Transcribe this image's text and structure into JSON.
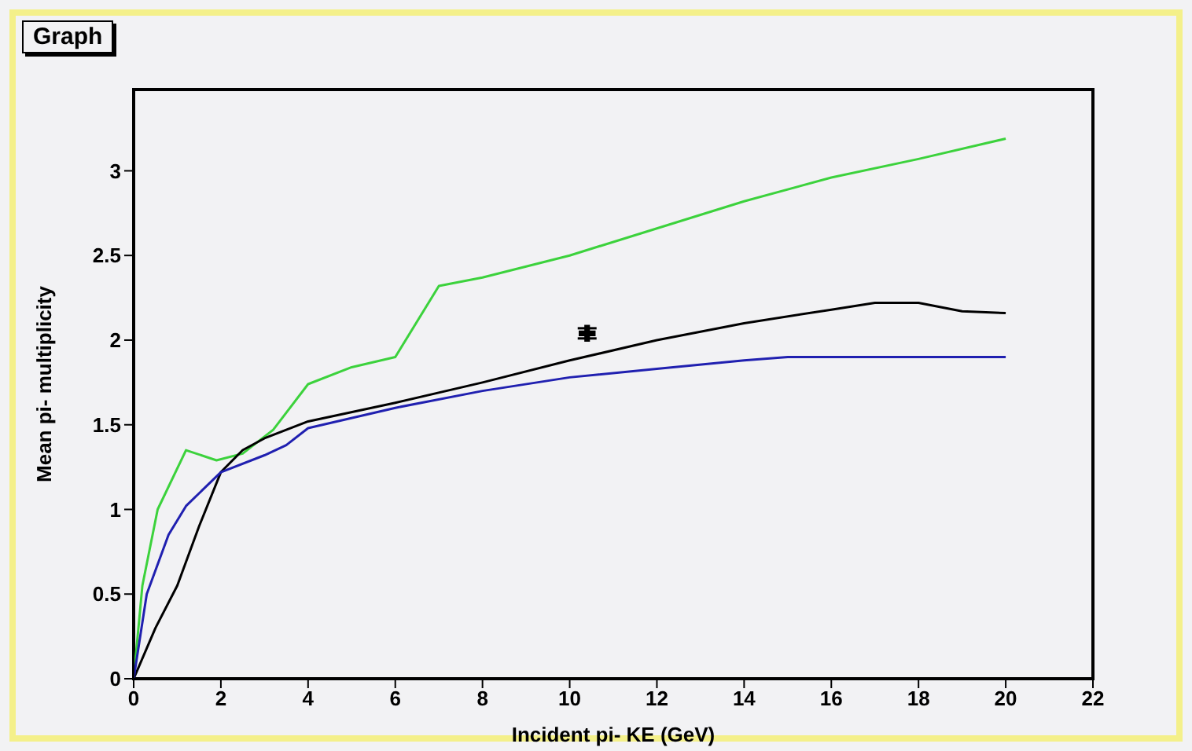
{
  "chart_data": {
    "type": "line",
    "title": "Graph",
    "xlabel": "Incident pi- KE (GeV)",
    "ylabel": "Mean pi- multiplicity",
    "xlim": [
      0,
      22
    ],
    "xticks": [
      0,
      2,
      4,
      6,
      8,
      10,
      12,
      14,
      16,
      18,
      20,
      22
    ],
    "ylim": [
      0,
      3.48
    ],
    "yticks": [
      0,
      0.5,
      1,
      1.5,
      2,
      2.5,
      3
    ],
    "grid": false,
    "marker": "none",
    "line_style": "solid",
    "series": [
      {
        "color": "#3cd23c",
        "x": [
          0,
          0.2,
          0.55,
          1.2,
          1.9,
          2.5,
          3.2,
          4,
          5,
          6,
          7,
          8,
          10,
          12,
          14,
          16,
          18,
          20
        ],
        "values": [
          0,
          0.55,
          1.0,
          1.35,
          1.29,
          1.33,
          1.47,
          1.74,
          1.84,
          1.9,
          2.32,
          2.37,
          2.5,
          2.66,
          2.82,
          2.96,
          3.07,
          3.19
        ]
      },
      {
        "color": "#000000",
        "x": [
          0,
          0.5,
          1,
          1.5,
          2,
          2.5,
          3,
          4,
          6,
          8,
          10,
          12,
          14,
          16,
          17,
          18,
          19,
          20
        ],
        "values": [
          0,
          0.3,
          0.55,
          0.9,
          1.22,
          1.35,
          1.42,
          1.52,
          1.63,
          1.75,
          1.88,
          2.0,
          2.1,
          2.18,
          2.22,
          2.22,
          2.17,
          2.16
        ]
      },
      {
        "color": "#2020b0",
        "x": [
          0,
          0.3,
          0.8,
          1.2,
          2,
          3,
          3.5,
          4,
          6,
          8,
          10,
          12,
          14,
          15,
          20
        ],
        "values": [
          0,
          0.5,
          0.85,
          1.02,
          1.22,
          1.32,
          1.38,
          1.48,
          1.6,
          1.7,
          1.78,
          1.83,
          1.88,
          1.9,
          1.9
        ]
      },
      {
        "type": "scatter",
        "color": "#000000",
        "marker": "cross",
        "x": [
          10.4
        ],
        "values": [
          2.04
        ],
        "errors": [
          0.03
        ]
      }
    ]
  }
}
